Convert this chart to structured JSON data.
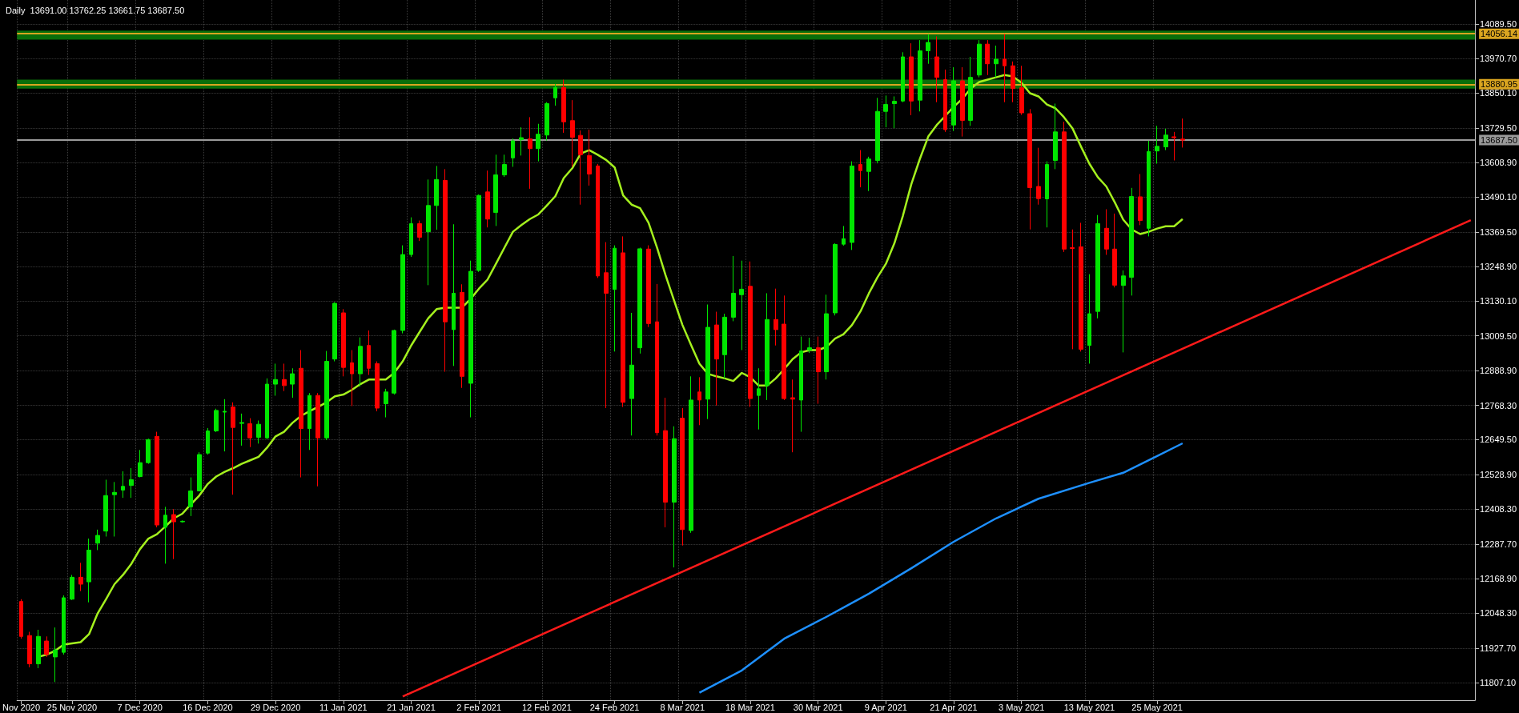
{
  "chart_data": {
    "type": "candlestick",
    "title": "Daily  13691.00 13762.25 13661.75 13687.50",
    "categories": [
      "Nov 2020",
      null,
      null,
      null,
      null,
      null,
      "25 Nov 2020",
      null,
      null,
      null,
      null,
      null,
      null,
      null,
      "7 Dec 2020",
      null,
      null,
      null,
      null,
      null,
      null,
      null,
      "16 Dec 2020",
      null,
      null,
      null,
      null,
      null,
      null,
      null,
      "29 Dec 2020",
      null,
      null,
      null,
      null,
      null,
      null,
      null,
      "11 Jan 2021",
      null,
      null,
      null,
      null,
      null,
      null,
      null,
      "21 Jan 2021",
      null,
      null,
      null,
      null,
      null,
      null,
      null,
      "2 Feb 2021",
      null,
      null,
      null,
      null,
      null,
      null,
      null,
      "12 Feb 2021",
      null,
      null,
      null,
      null,
      null,
      null,
      null,
      "24 Feb 2021",
      null,
      null,
      null,
      null,
      null,
      null,
      null,
      "8 Mar 2021",
      null,
      null,
      null,
      null,
      null,
      null,
      null,
      "18 Mar 2021",
      null,
      null,
      null,
      null,
      null,
      null,
      null,
      "30 Mar 2021",
      null,
      null,
      null,
      null,
      null,
      null,
      null,
      "9 Apr 2021",
      null,
      null,
      null,
      null,
      null,
      null,
      null,
      "21 Apr 2021",
      null,
      null,
      null,
      null,
      null,
      null,
      null,
      "3 May 2021",
      null,
      null,
      null,
      null,
      null,
      null,
      null,
      "13 May 2021",
      null,
      null,
      null,
      null,
      null,
      null,
      null,
      "25 May 2021",
      null,
      null,
      null,
      null,
      null,
      null,
      null,
      null,
      null,
      null,
      null,
      null,
      null,
      null,
      null,
      null,
      null,
      null,
      null,
      null,
      null,
      null,
      null,
      null,
      null,
      null,
      null,
      null,
      null,
      null,
      null,
      null,
      null,
      null,
      null,
      null,
      null
    ],
    "ohlc": [
      [
        12089,
        12097,
        11960,
        11968
      ],
      [
        11971,
        11984,
        11861,
        11873
      ],
      [
        11873,
        11991,
        11858,
        11968
      ],
      [
        11952,
        11968,
        11897,
        11905
      ],
      [
        11897,
        11999,
        11810,
        11921
      ],
      [
        11913,
        12110,
        11905,
        12102
      ],
      [
        12097,
        12181,
        12094,
        12173
      ],
      [
        12173,
        12223,
        12125,
        12149
      ],
      [
        12157,
        12307,
        12086,
        12267
      ],
      [
        12291,
        12338,
        12267,
        12318
      ],
      [
        12333,
        12511,
        12314,
        12456
      ],
      [
        12459,
        12503,
        12314,
        12467
      ],
      [
        12475,
        12540,
        12448,
        12488
      ],
      [
        12491,
        12551,
        12448,
        12511
      ],
      [
        12522,
        12614,
        12519,
        12570
      ],
      [
        12570,
        12653,
        12566,
        12650
      ],
      [
        12661,
        12677,
        12346,
        12354
      ],
      [
        12346,
        12417,
        12220,
        12388
      ],
      [
        12390,
        12409,
        12236,
        12365
      ],
      [
        12365,
        12370,
        12362,
        12367
      ],
      [
        12417,
        12519,
        12385,
        12472
      ],
      [
        12472,
        12606,
        12472,
        12598
      ],
      [
        12603,
        12690,
        12598,
        12680
      ],
      [
        12680,
        12757,
        12676,
        12751
      ],
      [
        12745,
        12790,
        12609,
        12748
      ],
      [
        12763,
        12779,
        12459,
        12692
      ],
      [
        12706,
        12740,
        12629,
        12709
      ],
      [
        12705,
        12724,
        12624,
        12656
      ],
      [
        12658,
        12716,
        12636,
        12703
      ],
      [
        12656,
        12862,
        12652,
        12842
      ],
      [
        12842,
        12913,
        12802,
        12858
      ],
      [
        12858,
        12913,
        12818,
        12837
      ],
      [
        12842,
        12897,
        12795,
        12878
      ],
      [
        12897,
        12960,
        12519,
        12688
      ],
      [
        12688,
        12811,
        12614,
        12803
      ],
      [
        12803,
        12811,
        12488,
        12656
      ],
      [
        12656,
        12957,
        12648,
        12921
      ],
      [
        12929,
        13126,
        12921,
        13122
      ],
      [
        13089,
        13102,
        12869,
        12900
      ],
      [
        12916,
        12960,
        12766,
        12878
      ],
      [
        12878,
        13004,
        12834,
        12973
      ],
      [
        12976,
        13028,
        12874,
        12897
      ],
      [
        12913,
        12921,
        12748,
        12759
      ],
      [
        12774,
        12826,
        12727,
        12815
      ],
      [
        12811,
        13031,
        12806,
        13028
      ],
      [
        13028,
        13323,
        13018,
        13291
      ],
      [
        13291,
        13420,
        13283,
        13398
      ],
      [
        13398,
        13409,
        13338,
        13351
      ],
      [
        13370,
        13551,
        13185,
        13461
      ],
      [
        13461,
        13598,
        13377,
        13551
      ],
      [
        13548,
        13587,
        12885,
        13058
      ],
      [
        13031,
        13396,
        12905,
        13157
      ],
      [
        13160,
        13188,
        12829,
        12869
      ],
      [
        12845,
        13270,
        12727,
        13233
      ],
      [
        13236,
        13499,
        13231,
        13496
      ],
      [
        13508,
        13582,
        13385,
        13414
      ],
      [
        13437,
        13637,
        13390,
        13567
      ],
      [
        13567,
        13637,
        13560,
        13603
      ],
      [
        13626,
        13693,
        13595,
        13685
      ],
      [
        13689,
        13732,
        13634,
        13696
      ],
      [
        13692,
        13767,
        13519,
        13658
      ],
      [
        13658,
        13744,
        13614,
        13708
      ],
      [
        13705,
        13819,
        13686,
        13814
      ],
      [
        13834,
        13882,
        13807,
        13870
      ],
      [
        13870,
        13897,
        13713,
        13751
      ],
      [
        13755,
        13826,
        13595,
        13697
      ],
      [
        13704,
        13721,
        13464,
        13637
      ],
      [
        13634,
        13724,
        13530,
        13570
      ],
      [
        13598,
        13605,
        13210,
        13217
      ],
      [
        13228,
        13334,
        12759,
        13157
      ],
      [
        13170,
        13323,
        12955,
        13313
      ],
      [
        13297,
        13354,
        12763,
        12779
      ],
      [
        12792,
        13089,
        12664,
        12908
      ],
      [
        12968,
        13315,
        12948,
        13311
      ],
      [
        13310,
        13323,
        13040,
        13052
      ],
      [
        13058,
        13189,
        12664,
        12674
      ],
      [
        12681,
        12795,
        12346,
        12433
      ],
      [
        12433,
        12696,
        12207,
        12653
      ],
      [
        12724,
        12759,
        12283,
        12338
      ],
      [
        12335,
        12869,
        12327,
        12787
      ],
      [
        12815,
        12866,
        12700,
        12787
      ],
      [
        12790,
        13118,
        12721,
        13039
      ],
      [
        13047,
        13093,
        12768,
        12929
      ],
      [
        12944,
        13086,
        12862,
        13074
      ],
      [
        13074,
        13286,
        13060,
        13157
      ],
      [
        13152,
        13270,
        12960,
        13171
      ],
      [
        13181,
        13267,
        12763,
        12792
      ],
      [
        12803,
        12897,
        12685,
        12826
      ],
      [
        12837,
        13157,
        12787,
        13066
      ],
      [
        13066,
        13173,
        12976,
        13031
      ],
      [
        13050,
        13149,
        12787,
        12792
      ],
      [
        12795,
        12858,
        12606,
        12790
      ],
      [
        12787,
        13007,
        12677,
        12957
      ],
      [
        12960,
        13003,
        12950,
        12968
      ],
      [
        12968,
        13007,
        12774,
        12885
      ],
      [
        12885,
        13152,
        12858,
        13086
      ],
      [
        13089,
        13330,
        13080,
        13326
      ],
      [
        13327,
        13390,
        13322,
        13346
      ],
      [
        13333,
        13614,
        13307,
        13598
      ],
      [
        13603,
        13653,
        13524,
        13582
      ],
      [
        13579,
        13630,
        13511,
        13622
      ],
      [
        13617,
        13834,
        13607,
        13787
      ],
      [
        13787,
        13842,
        13732,
        13811
      ],
      [
        13814,
        13839,
        13729,
        13822
      ],
      [
        13823,
        13992,
        13819,
        13976
      ],
      [
        13976,
        14023,
        13774,
        13823
      ],
      [
        13826,
        14034,
        13787,
        13997
      ],
      [
        13997,
        14055,
        13952,
        14026
      ],
      [
        13976,
        14047,
        13819,
        13905
      ],
      [
        13897,
        13932,
        13716,
        13724
      ],
      [
        13740,
        13940,
        13719,
        13893
      ],
      [
        13893,
        13940,
        13700,
        13756
      ],
      [
        13756,
        13976,
        13737,
        13905
      ],
      [
        13913,
        14034,
        13905,
        14020
      ],
      [
        14020,
        14034,
        13913,
        13952
      ],
      [
        13952,
        14015,
        13905,
        13968
      ],
      [
        13968,
        14055,
        13819,
        13945
      ],
      [
        13945,
        13960,
        13819,
        13866
      ],
      [
        13869,
        13945,
        13775,
        13782
      ],
      [
        13779,
        13795,
        13378,
        13523
      ],
      [
        13527,
        13661,
        13464,
        13485
      ],
      [
        13484,
        13614,
        13385,
        13603
      ],
      [
        13617,
        13814,
        13587,
        13716
      ],
      [
        13716,
        13751,
        13300,
        13310
      ],
      [
        13315,
        13378,
        12963,
        13312
      ],
      [
        13318,
        13401,
        12955,
        12963
      ],
      [
        12976,
        13223,
        12913,
        13086
      ],
      [
        13094,
        13428,
        13070,
        13398
      ],
      [
        13382,
        13448,
        13290,
        13310
      ],
      [
        13310,
        13433,
        13177,
        13185
      ],
      [
        13184,
        13236,
        12952,
        13217
      ],
      [
        13212,
        13522,
        13149,
        13492
      ],
      [
        13491,
        13570,
        13393,
        13409
      ],
      [
        13382,
        13685,
        13354,
        13648
      ],
      [
        13650,
        13737,
        13606,
        13666
      ],
      [
        13664,
        13727,
        13653,
        13705
      ],
      [
        13699,
        13716,
        13617,
        13696
      ],
      [
        13691,
        13762.25,
        13661.75,
        13687.5
      ],
      null,
      null,
      null,
      null,
      null,
      null,
      null,
      null,
      null,
      null,
      null,
      null,
      null,
      null,
      null,
      null,
      null,
      null,
      null,
      null,
      null,
      null,
      null,
      null,
      null,
      null,
      null,
      null,
      null,
      null,
      null,
      null,
      null,
      null
    ],
    "colors": [
      "#ff0000",
      "#ff0000",
      "#00e600",
      "#ff0000",
      "#00e600",
      "#00e600",
      "#00e600",
      "#ff0000",
      "#00e600",
      "#00e600",
      "#00e600",
      "#00e600",
      "#00e600",
      "#00e600",
      "#00e600",
      "#00e600",
      "#ff0000",
      "#00e600",
      "#ff0000",
      "#00e600",
      "#00e600",
      "#00e600",
      "#00e600",
      "#00e600",
      "#00e600",
      "#ff0000",
      "#00e600",
      "#ff0000",
      "#00e600",
      "#00e600",
      "#00e600",
      "#ff0000",
      "#00e600",
      "#ff0000",
      "#00e600",
      "#ff0000",
      "#00e600",
      "#00e600",
      "#ff0000",
      "#ff0000",
      "#00e600",
      "#ff0000",
      "#ff0000",
      "#00e600",
      "#00e600",
      "#00e600",
      "#00e600",
      "#ff0000",
      "#00e600",
      "#00e600",
      "#ff0000",
      "#00e600",
      "#ff0000",
      "#00e600",
      "#00e600",
      "#ff0000",
      "#00e600",
      "#00e600",
      "#00e600",
      "#00e600",
      "#ff0000",
      "#00e600",
      "#00e600",
      "#00e600",
      "#ff0000",
      "#ff0000",
      "#ff0000",
      "#ff0000",
      "#ff0000",
      "#ff0000",
      "#00e600",
      "#ff0000",
      "#00e600",
      "#00e600",
      "#ff0000",
      "#ff0000",
      "#ff0000",
      "#00e600",
      "#ff0000",
      "#00e600",
      "#ff0000",
      "#00e600",
      "#ff0000",
      "#00e600",
      "#00e600",
      "#00e600",
      "#ff0000",
      "#00e600",
      "#00e600",
      "#ff0000",
      "#ff0000",
      "#ff0000",
      "#00e600",
      "#00e600",
      "#ff0000",
      "#00e600",
      "#00e600",
      "#00e600",
      "#00e600",
      "#ff0000",
      "#00e600",
      "#00e600",
      "#00e600",
      "#00e600",
      "#00e600",
      "#ff0000",
      "#00e600",
      "#00e600",
      "#ff0000",
      "#ff0000",
      "#00e600",
      "#ff0000",
      "#00e600",
      "#00e600",
      "#ff0000",
      "#00e600",
      "#ff0000",
      "#ff0000",
      "#ff0000",
      "#ff0000",
      "#ff0000",
      "#00e600",
      "#00e600",
      "#ff0000",
      "#ff0000",
      "#ff0000",
      "#00e600",
      "#00e600",
      "#ff0000",
      "#ff0000",
      "#00e600",
      "#00e600",
      "#ff0000",
      "#00e600",
      "#00e600",
      "#00e600",
      "#ff0000",
      "#ff0000",
      null,
      null,
      null,
      null,
      null,
      null,
      null,
      null,
      null,
      null,
      null,
      null,
      null,
      null,
      null,
      null,
      null,
      null,
      null,
      null,
      null,
      null,
      null,
      null,
      null,
      null,
      null,
      null,
      null,
      null,
      null,
      null,
      null,
      null
    ],
    "series": [
      {
        "type": "line",
        "color": "#a4f01e",
        "values": [
          null,
          null,
          11897,
          11905,
          11918,
          11940,
          11944,
          11948,
          11976,
          12047,
          12097,
          12149,
          12181,
          12220,
          12270,
          12307,
          12322,
          12349,
          12377,
          12393,
          12425,
          12456,
          12496,
          12522,
          12538,
          12551,
          12566,
          12578,
          12590,
          12622,
          12661,
          12677,
          12708,
          12732,
          12748,
          12763,
          12779,
          12800,
          12806,
          12822,
          12842,
          12858,
          12858,
          12858,
          12881,
          12921,
          12976,
          13023,
          13070,
          13102,
          13107,
          13107,
          13107,
          13137,
          13173,
          13204,
          13259,
          13315,
          13370,
          13393,
          13414,
          13430,
          13461,
          13493,
          13556,
          13590,
          13641,
          13653,
          13637,
          13619,
          13593,
          13496,
          13464,
          13452,
          13401,
          13315,
          13220,
          13133,
          13047,
          12979,
          12913,
          12878,
          12869,
          12862,
          12853,
          12881,
          12866,
          12837,
          12837,
          12862,
          12894,
          12929,
          12952,
          12960,
          12960,
          12971,
          13000,
          13015,
          13047,
          13094,
          13157,
          13212,
          13259,
          13330,
          13425,
          13535,
          13622,
          13700,
          13740,
          13771,
          13803,
          13830,
          13866,
          13889,
          13897,
          13905,
          13913,
          13908,
          13886,
          13850,
          13839,
          13811,
          13798,
          13767,
          13729,
          13666,
          13606,
          13559,
          13527,
          13472,
          13412,
          13378,
          13362,
          13370,
          13381,
          13389,
          13389,
          13414,
          null,
          null,
          null,
          null,
          null,
          null,
          null,
          null,
          null,
          null,
          null,
          null,
          null,
          null,
          null,
          null,
          null,
          null,
          null,
          null,
          null,
          null,
          null,
          null,
          null,
          null,
          null,
          null,
          null,
          null,
          null,
          null,
          null,
          null
        ]
      },
      {
        "type": "line",
        "color": "#1e90ff",
        "values": [
          null,
          null,
          null,
          null,
          null,
          null,
          null,
          null,
          null,
          null,
          null,
          null,
          null,
          null,
          null,
          null,
          null,
          null,
          null,
          null,
          null,
          null,
          null,
          null,
          null,
          null,
          null,
          null,
          null,
          null,
          null,
          null,
          null,
          null,
          null,
          null,
          null,
          null,
          null,
          null,
          null,
          null,
          null,
          null,
          null,
          null,
          null,
          null,
          null,
          null,
          null,
          null,
          null,
          null,
          null,
          null,
          null,
          null,
          null,
          null,
          null,
          null,
          null,
          null,
          null,
          null,
          null,
          null,
          null,
          null,
          null,
          null,
          null,
          null,
          null,
          null,
          null,
          null,
          null,
          null,
          11773,
          null,
          null,
          null,
          null,
          11850,
          null,
          null,
          null,
          null,
          11960,
          null,
          null,
          null,
          null,
          12036,
          null,
          null,
          null,
          null,
          12116,
          null,
          null,
          null,
          null,
          12204,
          null,
          null,
          null,
          null,
          12296,
          null,
          null,
          null,
          null,
          12377,
          null,
          null,
          null,
          null,
          12445,
          null,
          null,
          null,
          null,
          null,
          12500,
          null,
          null,
          null,
          12535,
          null,
          null,
          null,
          12593,
          null,
          null,
          12637,
          null,
          null,
          null,
          null,
          null,
          null,
          null,
          null,
          null,
          null,
          null,
          null,
          null,
          null,
          null,
          null,
          null,
          null,
          null,
          null,
          null,
          null,
          null,
          null,
          null,
          null,
          null,
          null,
          null,
          null,
          null,
          null,
          null,
          null
        ]
      },
      {
        "type": "line",
        "color": "#ff1a1a",
        "values": [
          null,
          null,
          null,
          null,
          null,
          null,
          null,
          null,
          null,
          null,
          null,
          null,
          null,
          null,
          null,
          null,
          null,
          null,
          null,
          null,
          null,
          null,
          null,
          null,
          null,
          null,
          null,
          null,
          null,
          null,
          null,
          null,
          null,
          null,
          null,
          null,
          null,
          null,
          null,
          null,
          null,
          null,
          null,
          null,
          null,
          11760,
          null,
          null,
          null,
          null,
          null,
          null,
          null,
          null,
          null,
          null,
          null,
          null,
          null,
          null,
          null,
          null,
          null,
          null,
          null,
          null,
          null,
          null,
          null,
          null,
          null,
          null,
          null,
          null,
          null,
          null,
          null,
          null,
          null,
          null,
          null,
          null,
          null,
          null,
          null,
          null,
          null,
          null,
          null,
          null,
          null,
          null,
          null,
          null,
          null,
          null,
          null,
          null,
          null,
          null,
          null,
          null,
          null,
          null,
          null,
          null,
          null,
          null,
          null,
          null,
          null,
          null,
          null,
          null,
          null,
          null,
          null,
          null,
          null,
          null,
          null,
          null,
          null,
          null,
          null,
          null,
          null,
          null,
          null,
          null,
          null,
          null,
          null,
          null,
          null,
          null,
          null,
          null,
          null,
          null,
          null,
          null,
          null,
          null,
          null,
          null,
          null,
          null,
          null,
          null,
          null,
          null,
          null,
          null,
          null,
          null,
          null,
          null,
          null,
          null,
          null,
          null,
          null,
          null,
          null,
          null,
          null,
          null,
          null,
          null,
          null,
          13410
        ]
      }
    ],
    "ylim": [
      11747,
      14173
    ],
    "yticks": [
      {
        "value": 11807.1,
        "label": "11807.10"
      },
      {
        "value": 11927.7,
        "label": "11927.70"
      },
      {
        "value": 12048.3,
        "label": "12048.30"
      },
      {
        "value": 12168.9,
        "label": "12168.90"
      },
      {
        "value": 12287.7,
        "label": "12287.70"
      },
      {
        "value": 12408.3,
        "label": "12408.30"
      },
      {
        "value": 12528.9,
        "label": "12528.90"
      },
      {
        "value": 12649.5,
        "label": "12649.50"
      },
      {
        "value": 12768.3,
        "label": "12768.30"
      },
      {
        "value": 12888.9,
        "label": "12888.90"
      },
      {
        "value": 13009.5,
        "label": "13009.50"
      },
      {
        "value": 13130.1,
        "label": "13130.10"
      },
      {
        "value": 13248.9,
        "label": "13248.90"
      },
      {
        "value": 13369.5,
        "label": "13369.50"
      },
      {
        "value": 13490.1,
        "label": "13490.10"
      },
      {
        "value": 13608.9,
        "label": "13608.90"
      },
      {
        "value": 13729.5,
        "label": "13729.50"
      },
      {
        "value": 13850.1,
        "label": "13850.10"
      },
      {
        "value": 13970.7,
        "label": "13970.70"
      },
      {
        "value": 14089.5,
        "label": "14089.50"
      }
    ],
    "ref_lines": [
      {
        "axis": "y",
        "value": 14056.14,
        "label": "14056.14",
        "color": "#daa520"
      },
      {
        "axis": "y",
        "value": 13880.95,
        "label": "13880.95",
        "color": "#daa520"
      },
      {
        "axis": "y",
        "value": 13687.5,
        "label": "13687.50",
        "color": "#9a9a9a"
      }
    ],
    "bands": [
      {
        "axis": "y",
        "from": 14036,
        "to": 14067,
        "color": "#0a6e0a"
      },
      {
        "axis": "y",
        "from": 13866,
        "to": 13897,
        "color": "#0a6e0a"
      }
    ],
    "grid": true
  }
}
